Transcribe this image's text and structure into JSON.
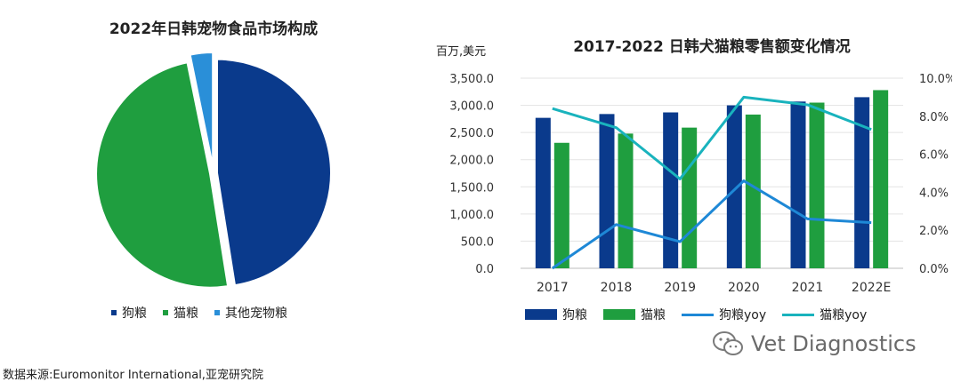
{
  "chart_data": [
    {
      "type": "pie",
      "title": "2022年日韩宠物食品市场构成",
      "slices": [
        {
          "label": "狗粮",
          "value": 47.5,
          "color": "#0a3a8c"
        },
        {
          "label": "猫粮",
          "value": 49.3,
          "color": "#1f9e3f"
        },
        {
          "label": "其他宠物粮",
          "value": 3.2,
          "color": "#2a8fd8"
        }
      ]
    },
    {
      "type": "bar+line",
      "title": "2017-2022 日韩犬猫粮零售额变化情况",
      "ylabel": "百万,美元",
      "categories": [
        "2017",
        "2018",
        "2019",
        "2020",
        "2021",
        "2022E"
      ],
      "ylim": [
        0,
        3500
      ],
      "y_ticks": [
        "0.0",
        "500.0",
        "1,000.0",
        "1,500.0",
        "2,000.0",
        "2,500.0",
        "3,000.0",
        "3,500.0"
      ],
      "y2lim": [
        0,
        10
      ],
      "y2_ticks": [
        "0.0%",
        "2.0%",
        "4.0%",
        "6.0%",
        "8.0%",
        "10.0%"
      ],
      "series": [
        {
          "name": "狗粮",
          "kind": "bar",
          "axis": "left",
          "color": "#0a3a8c",
          "values": [
            2770,
            2840,
            2870,
            3000,
            3070,
            3150
          ]
        },
        {
          "name": "猫粮",
          "kind": "bar",
          "axis": "left",
          "color": "#1f9e3f",
          "values": [
            2310,
            2480,
            2590,
            2830,
            3050,
            3280
          ]
        },
        {
          "name": "狗粮yoy",
          "kind": "line",
          "axis": "right",
          "color": "#1e88d6",
          "values": [
            0.0,
            2.3,
            1.4,
            4.6,
            2.6,
            2.4
          ]
        },
        {
          "name": "猫粮yoy",
          "kind": "line",
          "axis": "right",
          "color": "#19b3bd",
          "values": [
            8.4,
            7.4,
            4.7,
            9.0,
            8.6,
            7.3
          ]
        }
      ]
    }
  ],
  "source": "数据来源:Euromonitor International,亚宠研究院",
  "watermark": "Vet Diagnostics"
}
